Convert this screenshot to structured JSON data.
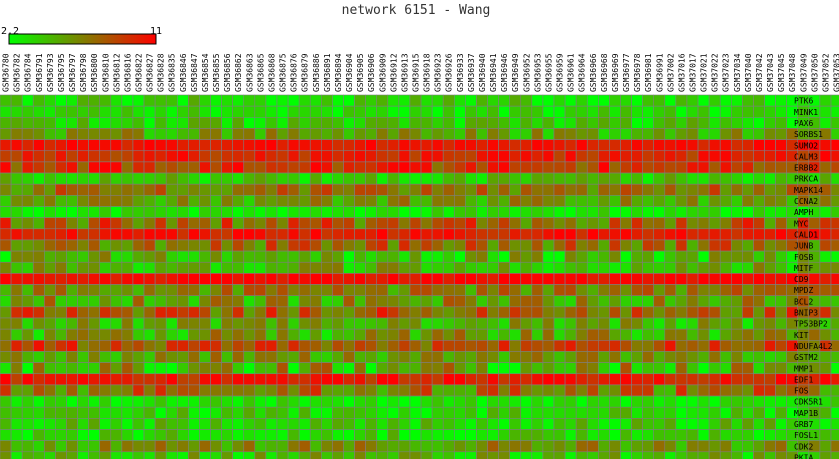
{
  "chart_data": {
    "type": "heatmap",
    "title": "network 6151 - Wang",
    "legend": {
      "min_label": "2.2",
      "max_label": "11",
      "min_color": "#00ff00",
      "max_color": "#ff0000"
    },
    "columns": [
      "GSM36780",
      "GSM36782",
      "GSM36784",
      "GSM36791",
      "GSM36793",
      "GSM36795",
      "GSM36797",
      "GSM36798",
      "GSM36800",
      "GSM36810",
      "GSM36812",
      "GSM36816",
      "GSM36822",
      "GSM36827",
      "GSM36828",
      "GSM36835",
      "GSM36846",
      "GSM36847",
      "GSM36854",
      "GSM36855",
      "GSM36856",
      "GSM36862",
      "GSM36863",
      "GSM36865",
      "GSM36868",
      "GSM36875",
      "GSM36876",
      "GSM36879",
      "GSM36886",
      "GSM36891",
      "GSM36894",
      "GSM36904",
      "GSM36905",
      "GSM36906",
      "GSM36909",
      "GSM36912",
      "GSM36913",
      "GSM36915",
      "GSM36918",
      "GSM36923",
      "GSM36926",
      "GSM36933",
      "GSM36937",
      "GSM36940",
      "GSM36941",
      "GSM36946",
      "GSM36949",
      "GSM36952",
      "GSM36953",
      "GSM36955",
      "GSM36959",
      "GSM36961",
      "GSM36964",
      "GSM36966",
      "GSM36968",
      "GSM36969",
      "GSM36977",
      "GSM36978",
      "GSM36981",
      "GSM36991",
      "GSM37002",
      "GSM37016",
      "GSM37017",
      "GSM37021",
      "GSM37022",
      "GSM37023",
      "GSM37034",
      "GSM37040",
      "GSM37042",
      "GSM37043",
      "GSM37045",
      "GSM37048",
      "GSM37049",
      "GSM37050",
      "GSM37052",
      "GSM37053",
      "GSM37054",
      "GSM37056",
      "GSM37061"
    ],
    "rows": [
      {
        "gene": "PTK6",
        "mean": 0.15,
        "var": 0.12
      },
      {
        "gene": "MINK1",
        "mean": 0.12,
        "var": 0.1
      },
      {
        "gene": "PAX6",
        "mean": 0.18,
        "var": 0.12
      },
      {
        "gene": "SORBS1",
        "mean": 0.35,
        "var": 0.15
      },
      {
        "gene": "SUMO2",
        "mean": 0.92,
        "var": 0.06
      },
      {
        "gene": "CALM3",
        "mean": 0.85,
        "var": 0.1
      },
      {
        "gene": "ERBB2",
        "mean": 0.78,
        "var": 0.15
      },
      {
        "gene": "PRKCA",
        "mean": 0.22,
        "var": 0.12
      },
      {
        "gene": "MAPK14",
        "mean": 0.55,
        "var": 0.15
      },
      {
        "gene": "CCNA2",
        "mean": 0.4,
        "var": 0.15
      },
      {
        "gene": "AMPH",
        "mean": 0.1,
        "var": 0.08
      },
      {
        "gene": "MYC",
        "mean": 0.6,
        "var": 0.2
      },
      {
        "gene": "CALD1",
        "mean": 0.9,
        "var": 0.08
      },
      {
        "gene": "JUNB",
        "mean": 0.55,
        "var": 0.18
      },
      {
        "gene": "FOSB",
        "mean": 0.25,
        "var": 0.18
      },
      {
        "gene": "MITF",
        "mean": 0.3,
        "var": 0.15
      },
      {
        "gene": "CD9",
        "mean": 0.95,
        "var": 0.05
      },
      {
        "gene": "MPDZ",
        "mean": 0.5,
        "var": 0.15
      },
      {
        "gene": "BCL2",
        "mean": 0.4,
        "var": 0.18
      },
      {
        "gene": "BNIP3",
        "mean": 0.65,
        "var": 0.18
      },
      {
        "gene": "TP53BP2",
        "mean": 0.3,
        "var": 0.15
      },
      {
        "gene": "KIT",
        "mean": 0.35,
        "var": 0.18
      },
      {
        "gene": "NDUFA4L2",
        "mean": 0.7,
        "var": 0.15
      },
      {
        "gene": "GSTM2",
        "mean": 0.4,
        "var": 0.15
      },
      {
        "gene": "MMP1",
        "mean": 0.3,
        "var": 0.25
      },
      {
        "gene": "EDF1",
        "mean": 0.88,
        "var": 0.1
      },
      {
        "gene": "FOS",
        "mean": 0.55,
        "var": 0.2
      },
      {
        "gene": "CDK5R1",
        "mean": 0.1,
        "var": 0.08
      },
      {
        "gene": "MAP1B",
        "mean": 0.15,
        "var": 0.12
      },
      {
        "gene": "GRB7",
        "mean": 0.2,
        "var": 0.12
      },
      {
        "gene": "FOSL1",
        "mean": 0.15,
        "var": 0.12
      },
      {
        "gene": "CDK2",
        "mean": 0.4,
        "var": 0.15
      },
      {
        "gene": "PKIA",
        "mean": 0.25,
        "var": 0.15
      }
    ]
  }
}
